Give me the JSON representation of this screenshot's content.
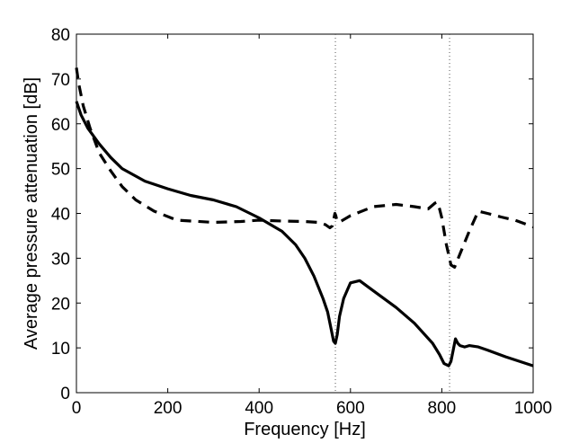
{
  "chart_data": {
    "type": "line",
    "xlabel": "Frequency [Hz]",
    "ylabel": "Average pressure attenuation [dB]",
    "xlim": [
      0,
      1000
    ],
    "ylim": [
      0,
      80
    ],
    "xticks": [
      0,
      200,
      400,
      600,
      800,
      1000
    ],
    "yticks": [
      0,
      10,
      20,
      30,
      40,
      50,
      60,
      70,
      80
    ],
    "grid": false,
    "legend": "none",
    "vlines": [
      567,
      817
    ],
    "series": [
      {
        "style": "solid",
        "color": "#000000",
        "x": [
          0,
          10,
          25,
          50,
          75,
          100,
          150,
          200,
          250,
          300,
          350,
          400,
          450,
          480,
          500,
          520,
          540,
          550,
          558,
          563,
          567,
          571,
          576,
          585,
          600,
          620,
          640,
          660,
          700,
          740,
          780,
          795,
          805,
          815,
          820,
          825,
          830,
          835,
          840,
          850,
          860,
          880,
          900,
          940,
          970,
          1000
        ],
        "y": [
          65,
          62,
          59,
          55.5,
          52.5,
          50,
          47.2,
          45.5,
          44,
          43,
          41.5,
          39,
          36,
          33,
          30,
          26,
          21,
          18,
          14,
          11.5,
          11,
          13,
          17,
          21,
          24.5,
          25,
          23.5,
          22,
          19,
          15.5,
          11,
          8.5,
          6.5,
          6,
          7,
          9.5,
          12,
          11,
          10.5,
          10.2,
          10.5,
          10.2,
          9.5,
          8,
          7,
          6
        ]
      },
      {
        "style": "dashed",
        "color": "#000000",
        "x": [
          0,
          5,
          15,
          30,
          50,
          75,
          100,
          130,
          170,
          220,
          300,
          360,
          400,
          450,
          500,
          530,
          545,
          555,
          560,
          563,
          566,
          568,
          570,
          575,
          600,
          650,
          700,
          740,
          770,
          785,
          790,
          795,
          800,
          810,
          820,
          828,
          840,
          860,
          880,
          900,
          930,
          960,
          1000
        ],
        "y": [
          72.5,
          69,
          64,
          59,
          53.5,
          49.5,
          46,
          43,
          40.5,
          38.5,
          38,
          38.2,
          38.5,
          38.3,
          38.2,
          38,
          37.5,
          36.8,
          37.2,
          38.5,
          40,
          39.5,
          38.5,
          38,
          39.5,
          41.5,
          42,
          41.5,
          41,
          42.3,
          42.5,
          41,
          39,
          33,
          28.5,
          28,
          31,
          36,
          40.5,
          40,
          39.2,
          38.5,
          37
        ]
      }
    ]
  }
}
